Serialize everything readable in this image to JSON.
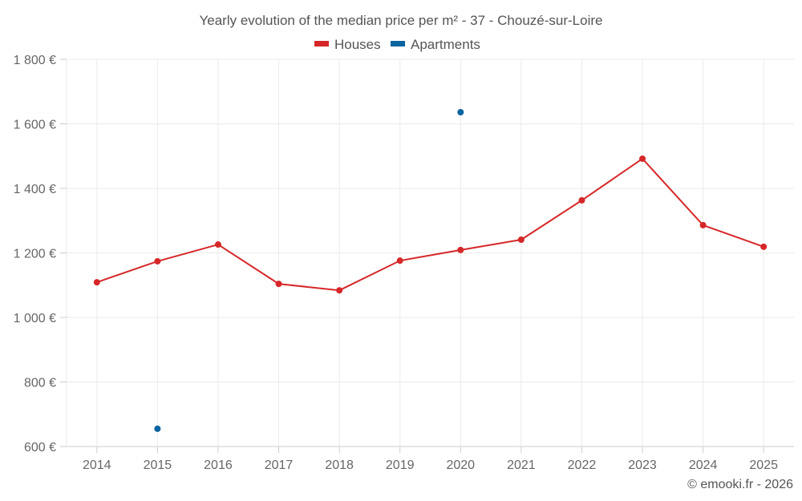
{
  "chart_data": {
    "type": "line",
    "title": "Yearly evolution of the median price per m² - 37 - Chouzé-sur-Loire",
    "xlabel": "",
    "ylabel": "",
    "categories": [
      "2014",
      "2015",
      "2016",
      "2017",
      "2018",
      "2019",
      "2020",
      "2021",
      "2022",
      "2023",
      "2024",
      "2025"
    ],
    "ylim": [
      600,
      1800
    ],
    "yticks": [
      600,
      800,
      1000,
      1200,
      1400,
      1600,
      1800
    ],
    "ytick_labels": [
      "600 €",
      "800 €",
      "1 000 €",
      "1 200 €",
      "1 400 €",
      "1 600 €",
      "1 800 €"
    ],
    "grid": true,
    "legend_position": "top-center",
    "series": [
      {
        "name": "Houses",
        "color": "#d62728",
        "values": [
          1109,
          1174,
          1226,
          1104,
          1084,
          1176,
          1209,
          1241,
          1363,
          1492,
          1286,
          1219
        ]
      },
      {
        "name": "Apartments",
        "color": "#0a64a0",
        "values": [
          null,
          655,
          null,
          null,
          null,
          null,
          1636,
          null,
          null,
          null,
          null,
          null
        ]
      }
    ]
  },
  "credit": "© emooki.fr - 2026"
}
